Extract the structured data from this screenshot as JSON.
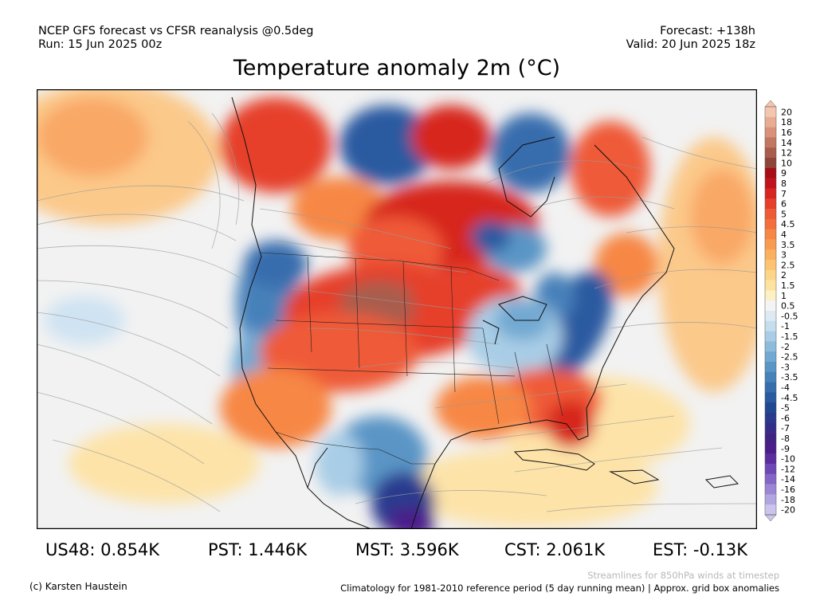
{
  "header": {
    "line1_left": "NCEP GFS forecast vs CFSR reanalysis @0.5deg",
    "line2_left": "Run: 15 Jun 2025 00z",
    "line1_right": "Forecast: +138h",
    "line2_right": "Valid: 20 Jun 2025 18z"
  },
  "title": "Temperature anomaly 2m (°C)",
  "legend": {
    "labels": [
      "20",
      "18",
      "16",
      "14",
      "12",
      "10",
      "9",
      "8",
      "7",
      "6",
      "5",
      "4.5",
      "4",
      "3.5",
      "3",
      "2.5",
      "2",
      "1.5",
      "1",
      "0.5",
      "-0.5",
      "-1",
      "-1.5",
      "-2",
      "-2.5",
      "-3",
      "-3.5",
      "-4",
      "-4.5",
      "-5",
      "-6",
      "-7",
      "-8",
      "-9",
      "-10",
      "-12",
      "-14",
      "-16",
      "-18",
      "-20"
    ],
    "colors": [
      "#f3c6b0",
      "#e8ac92",
      "#d9917a",
      "#c27762",
      "#a95d4d",
      "#8f463a",
      "#a50f15",
      "#c0141c",
      "#d7261f",
      "#e6402b",
      "#ef5a37",
      "#f36f3c",
      "#f78745",
      "#f99c52",
      "#fbb061",
      "#fcc373",
      "#fdd588",
      "#fde3a0",
      "#fdf0c2",
      "#f4f4f4",
      "#ddeaf4",
      "#c6ddee",
      "#a9cde6",
      "#8cbbdc",
      "#72a9d2",
      "#5a95c6",
      "#4781ba",
      "#376dad",
      "#2a5aa0",
      "#1f4a93",
      "#2a3b8e",
      "#352e88",
      "#402482",
      "#4c1e8a",
      "#5b2ea0",
      "#6e48b4",
      "#8466c6",
      "#9b86d4",
      "#b3a6e0",
      "#ccc4ec"
    ]
  },
  "stats": [
    {
      "label": "US48: 0.854K"
    },
    {
      "label": "PST: 1.446K"
    },
    {
      "label": "MST: 3.596K"
    },
    {
      "label": "CST: 2.061K"
    },
    {
      "label": "EST: -0.13K"
    }
  ],
  "footer": {
    "credit": "(c) Karsten Haustein",
    "streamlines_note": "Streamlines for 850hPa winds at timestep",
    "climatology_note": "Climatology for 1981-2010 reference period (5 day running mean) | Approx. grid box anomalies"
  }
}
